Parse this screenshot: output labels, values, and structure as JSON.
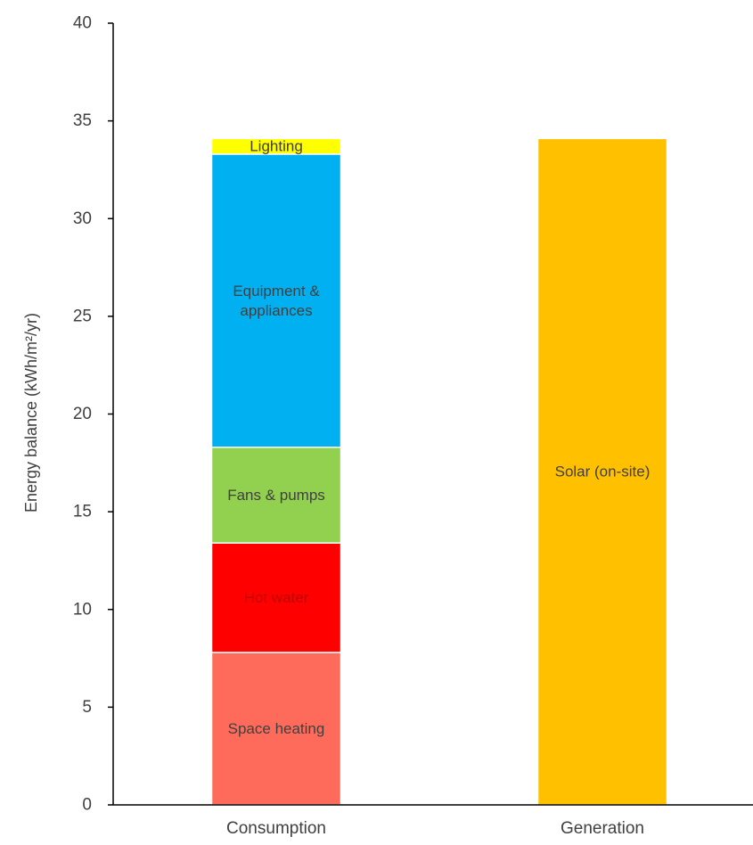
{
  "chart_data": {
    "type": "bar",
    "stacked": true,
    "title": "",
    "xlabel": "",
    "ylabel": "Energy balance (kWh/m²/yr)",
    "ylim": [
      0,
      40
    ],
    "yticks": [
      0,
      5,
      10,
      15,
      20,
      25,
      30,
      35,
      40
    ],
    "grid": false,
    "legend": "none",
    "categories": [
      "Consumption",
      "Generation"
    ],
    "series": [
      {
        "name": "Space heating",
        "color": "#ff6b5b",
        "label_color": "#404040",
        "values": [
          7.8,
          0
        ]
      },
      {
        "name": "Hot water",
        "color": "#ff0000",
        "label_color": "#c00000",
        "values": [
          5.6,
          0
        ]
      },
      {
        "name": "Fans & pumps",
        "color": "#92d050",
        "label_color": "#404040",
        "values": [
          4.9,
          0
        ]
      },
      {
        "name": "Equipment & appliances",
        "color": "#00b0f0",
        "label_color": "#404040",
        "values": [
          15.0,
          0
        ]
      },
      {
        "name": "Lighting",
        "color": "#ffff00",
        "label_color": "#404040",
        "values": [
          0.8,
          0
        ]
      },
      {
        "name": "Solar (on-site)",
        "color": "#ffc000",
        "label_color": "#404040",
        "values": [
          0,
          34.1
        ]
      }
    ],
    "segment_labels": {
      "Space heating": [
        "Space heating"
      ],
      "Hot water": [
        "Hot water"
      ],
      "Fans & pumps": [
        "Fans & pumps"
      ],
      "Equipment & appliances": [
        "Equipment &",
        "appliances"
      ],
      "Lighting": [
        "Lighting"
      ],
      "Solar (on-site)": [
        "Solar (on-site)"
      ]
    }
  }
}
